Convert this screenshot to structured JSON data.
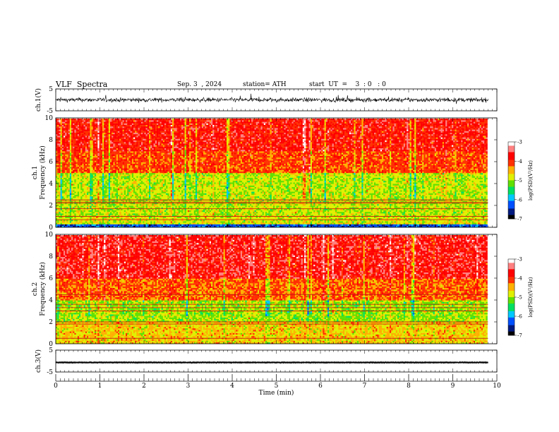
{
  "header": {
    "title": "VLF  Spectra",
    "date": "Sep. 3  , 2024",
    "station": "station= ATH",
    "start_ut": "start  UT  =    3  : 0   : 0"
  },
  "colors": {
    "background": "#ffffff",
    "axis": "#000000",
    "waveform": "#000000",
    "colormap": [
      "#000000",
      "#001a80",
      "#0050ff",
      "#00c8ff",
      "#00e060",
      "#60e000",
      "#e0f000",
      "#ffb000",
      "#ff3000",
      "#ff0000",
      "#ff8080",
      "#ffffff"
    ]
  },
  "chart_data": [
    {
      "type": "line",
      "name": "ch1-waveform",
      "ylabel": "ch.1(V)",
      "ylim": [
        -5,
        5
      ],
      "yticks": [
        "5",
        "-5"
      ],
      "xlim": [
        0,
        10
      ],
      "x_tick_step": 1,
      "x_minor_step": 0.1,
      "description_level": "dense noise trace around 0 V, amplitude ±1.5 V"
    },
    {
      "type": "heatmap",
      "name": "ch1-spectrogram",
      "ylabel": "ch.1\nFrequency (kHz)",
      "ylabel_lines": [
        "ch.1",
        "Frequency (kHz)"
      ],
      "ylim": [
        0,
        10
      ],
      "yticks": [
        "0",
        "2",
        "4",
        "6",
        "8",
        "10"
      ],
      "xlim": [
        0,
        10
      ],
      "data_xmax": 9.8,
      "colorbar": {
        "label": "log(PSD)(V²/Hz)",
        "ticks": [
          "-3",
          "-4",
          "-5",
          "-6",
          "-7"
        ],
        "range": [
          -7,
          -3
        ]
      },
      "band_levels": [
        {
          "f0": 0,
          "f1": 0.3,
          "level": -6.3
        },
        {
          "f0": 0.3,
          "f1": 1,
          "level": -4.8
        },
        {
          "f0": 1,
          "f1": 2.5,
          "level": -4.9
        },
        {
          "f0": 2.5,
          "f1": 5,
          "level": -4.9
        },
        {
          "f0": 5,
          "f1": 7,
          "level": -4.1
        },
        {
          "f0": 7,
          "f1": 10,
          "level": -3.8
        }
      ],
      "line_freqs_khz": [
        0.7,
        1.0,
        1.7,
        2.2,
        2.3,
        2.5
      ]
    },
    {
      "type": "heatmap",
      "name": "ch2-spectrogram",
      "ylabel": "ch.2\nFrequency (kHz)",
      "ylabel_lines": [
        "ch.2",
        "Frequency (kHz)"
      ],
      "ylim": [
        0,
        10
      ],
      "yticks": [
        "0",
        "2",
        "4",
        "6",
        "8",
        "10"
      ],
      "xlim": [
        0,
        10
      ],
      "data_xmax": 9.8,
      "colorbar": {
        "label": "log(PSD)(V²/Hz)",
        "ticks": [
          "-3",
          "-4",
          "-5",
          "-6",
          "-7"
        ],
        "range": [
          -7,
          -3
        ]
      },
      "band_levels": [
        {
          "f0": 0,
          "f1": 0.4,
          "level": -4.6
        },
        {
          "f0": 0.4,
          "f1": 2,
          "level": -4.6
        },
        {
          "f0": 2,
          "f1": 4,
          "level": -5.0
        },
        {
          "f0": 4,
          "f1": 6,
          "level": -4.2
        },
        {
          "f0": 6,
          "f1": 10,
          "level": -3.7
        }
      ],
      "line_freqs_khz": [
        0.5,
        1.8,
        2.0,
        3.0,
        3.3,
        3.6,
        4.5
      ]
    },
    {
      "type": "line",
      "name": "ch3-waveform",
      "ylabel": "ch.3(V)",
      "ylim": [
        -5,
        5
      ],
      "yticks": [
        "5",
        "-5"
      ],
      "xlim": [
        0,
        10
      ],
      "xlabel": "Time  (min)",
      "xticks": [
        "0",
        "1",
        "2",
        "3",
        "4",
        "5",
        "6",
        "7",
        "8",
        "9",
        "10"
      ],
      "baseline_v": 0,
      "amplitude_v": 0.3
    }
  ]
}
